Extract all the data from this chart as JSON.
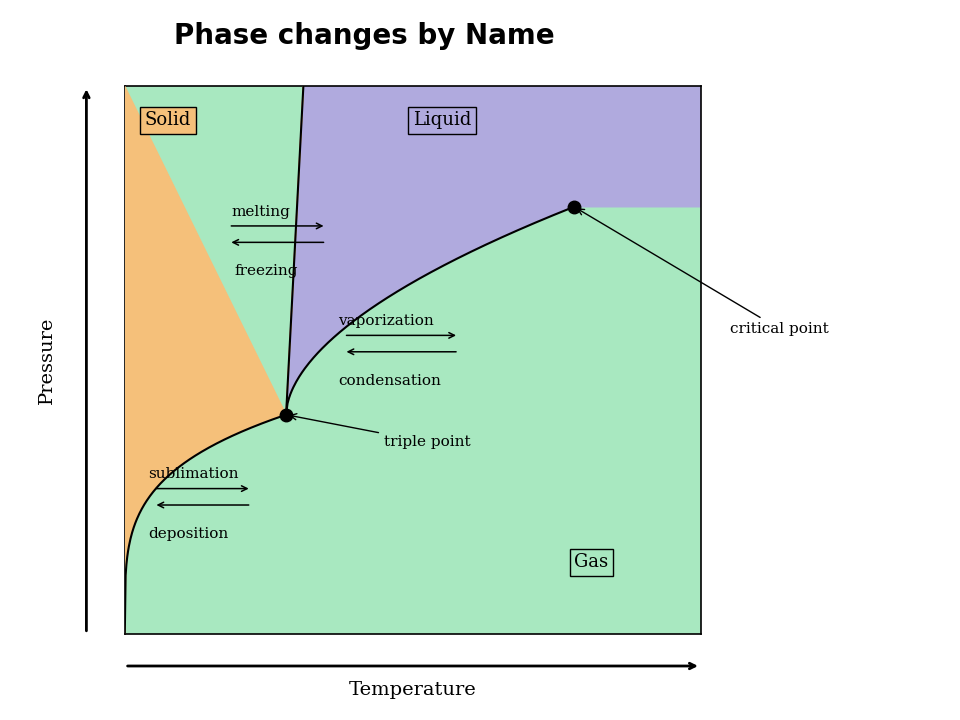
{
  "title": "Phase changes by Name",
  "title_fontsize": 20,
  "title_fontweight": "bold",
  "xlabel": "Temperature",
  "ylabel": "Pressure",
  "xlabel_fontsize": 14,
  "ylabel_fontsize": 14,
  "background_color": "#ffffff",
  "solid_color": "#f5c07a",
  "liquid_color": "#b0aade",
  "gas_color": "#a8e8c0",
  "xlim": [
    0,
    10
  ],
  "ylim": [
    0,
    10
  ],
  "triple_point": [
    2.8,
    4.0
  ],
  "critical_point": [
    7.8,
    7.8
  ],
  "phase_labels": {
    "Solid": [
      0.35,
      9.55
    ],
    "Liquid": [
      5.0,
      9.55
    ],
    "Gas": [
      7.8,
      1.3
    ]
  },
  "phase_label_fontsize": 13,
  "annot_fontsize": 11,
  "label_fontsize": 11
}
